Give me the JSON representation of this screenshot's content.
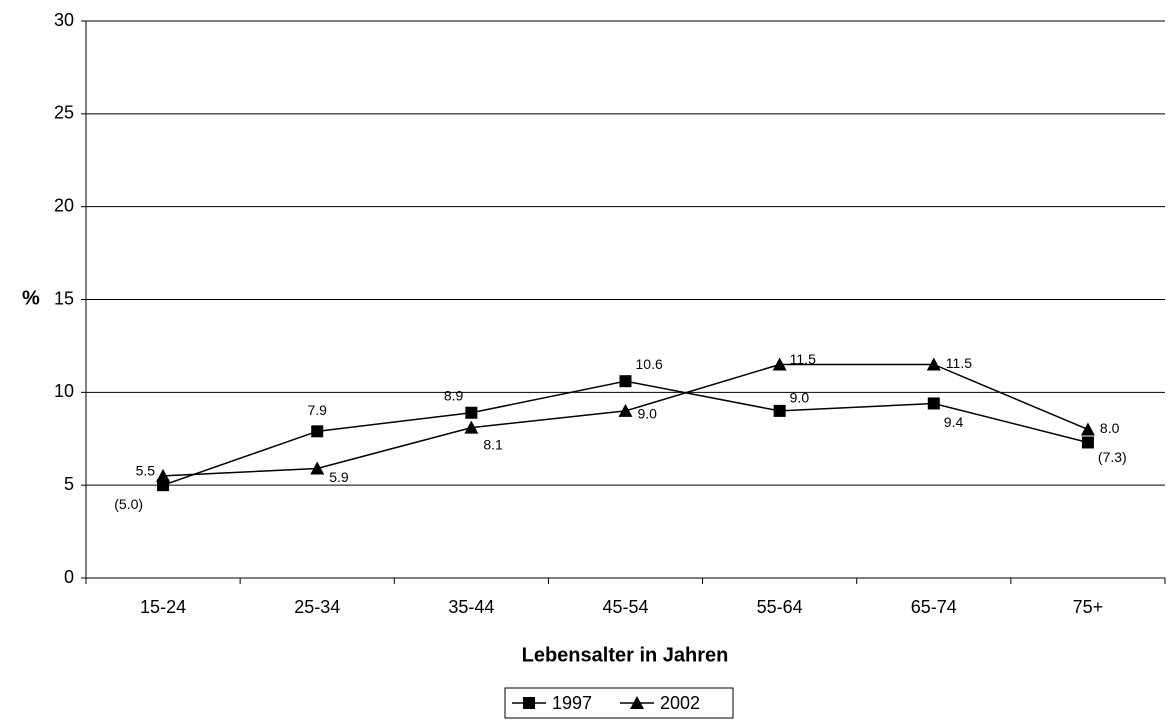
{
  "chart_data": {
    "type": "line",
    "categories": [
      "15-24",
      "25-34",
      "35-44",
      "45-54",
      "55-64",
      "65-74",
      "75+"
    ],
    "series": [
      {
        "name": "1997",
        "color": "#000000",
        "marker": "square",
        "values": [
          5.0,
          7.9,
          8.9,
          10.6,
          9.0,
          9.4,
          7.3
        ],
        "value_labels": [
          "(5.0)",
          "7.9",
          "8.9",
          "10.6",
          "9.0",
          "9.4",
          "(7.3)"
        ]
      },
      {
        "name": "2002",
        "color": "#000000",
        "marker": "triangle",
        "values": [
          5.5,
          5.9,
          8.1,
          9.0,
          11.5,
          11.5,
          8.0
        ],
        "value_labels": [
          "5.5",
          "5.9",
          "8.1",
          "9.0",
          "11.5",
          "11.5",
          "8.0"
        ]
      }
    ],
    "ylabel": "%",
    "xlabel": "Lebensalter in Jahren",
    "ylim": [
      0,
      30
    ],
    "yticks": [
      0,
      5,
      10,
      15,
      20,
      25,
      30
    ],
    "grid": true,
    "legend": "bottom"
  }
}
